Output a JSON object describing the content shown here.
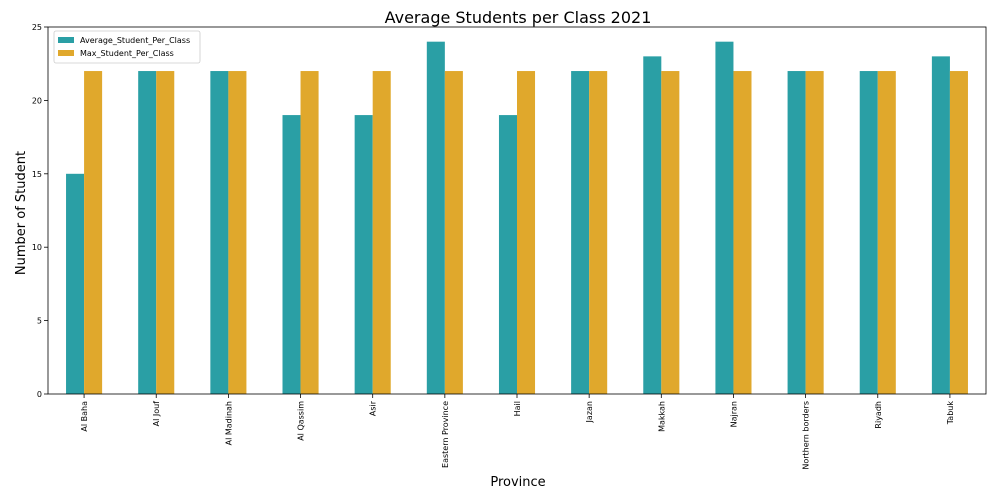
{
  "chart_data": {
    "type": "bar",
    "title": "Average Students per Class 2021",
    "xlabel": "Province",
    "ylabel": "Number of Student",
    "ylim": [
      0,
      25
    ],
    "yticks": [
      0,
      5,
      10,
      15,
      20,
      25
    ],
    "grid": false,
    "legend_position": "top-left",
    "categories": [
      "Al Baha",
      "Al Jouf",
      "Al Madinah",
      "Al Qassim",
      "Asir",
      "Eastern Province",
      "Hail",
      "Jazan",
      "Makkah",
      "Najran",
      "Northern borders",
      "Riyadh",
      "Tabuk"
    ],
    "series": [
      {
        "name": "Average_Student_Per_Class",
        "color": "#2a9fa5",
        "values": [
          15,
          22,
          22,
          19,
          19,
          24,
          19,
          22,
          23,
          24,
          22,
          22,
          23
        ]
      },
      {
        "name": "Max_Student_Per_Class",
        "color": "#e0a82c",
        "values": [
          22,
          22,
          22,
          22,
          22,
          22,
          22,
          22,
          22,
          22,
          22,
          22,
          22
        ]
      }
    ]
  }
}
